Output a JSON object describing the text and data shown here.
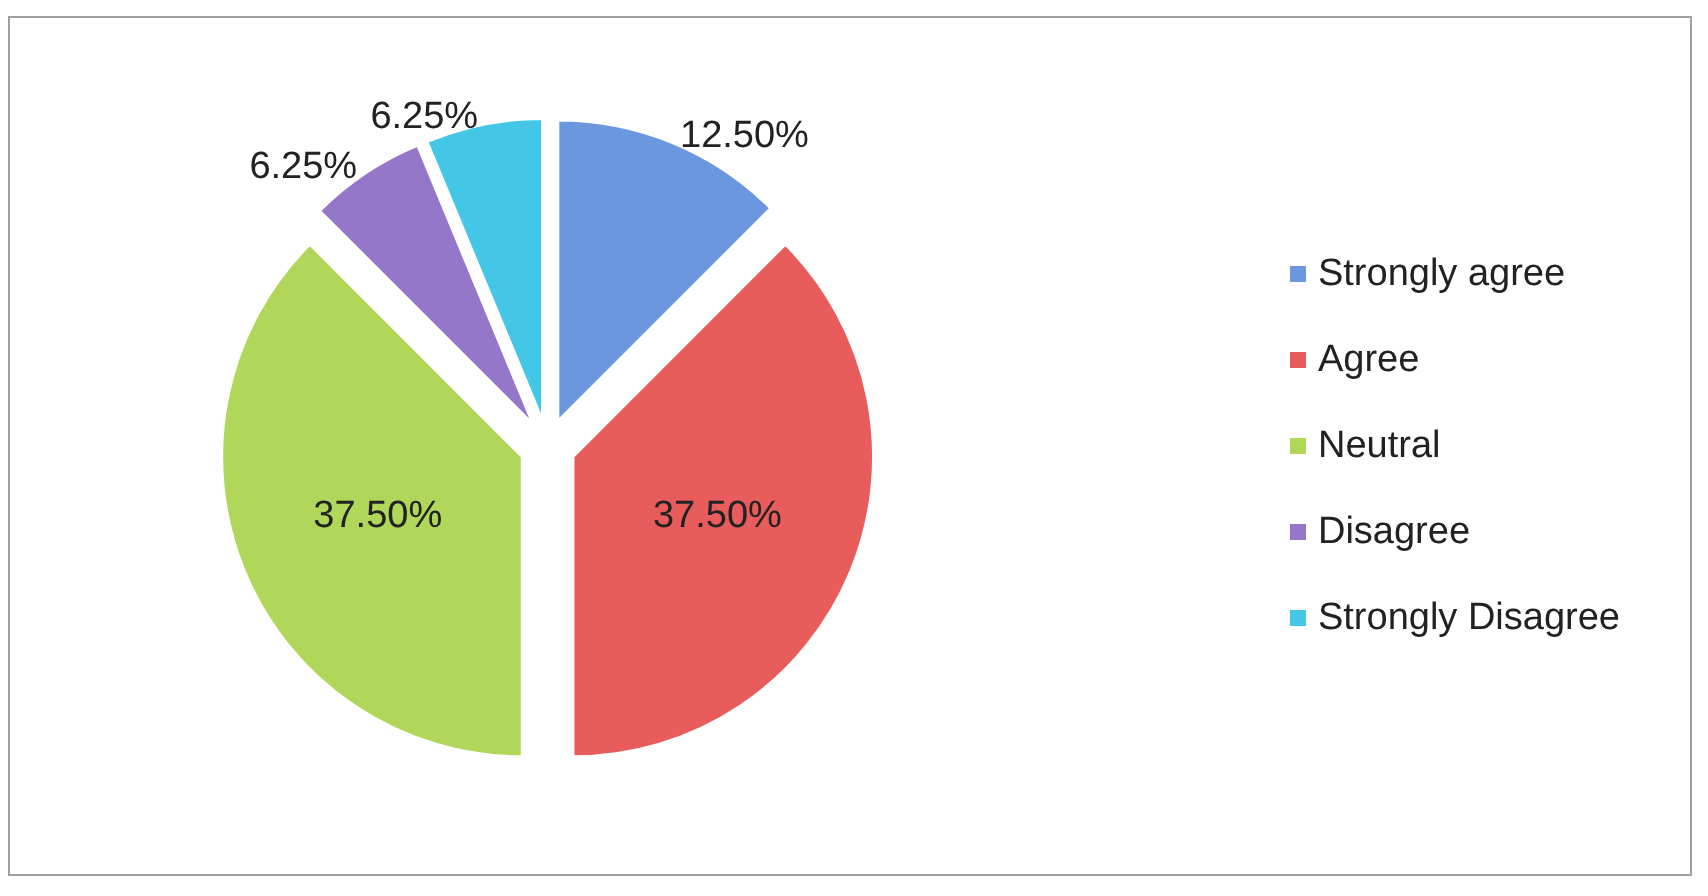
{
  "chart_data": {
    "type": "pie",
    "categories": [
      "Strongly agree",
      "Agree",
      "Neutral",
      "Disagree",
      "Strongly Disagree"
    ],
    "values": [
      12.5,
      37.5,
      37.5,
      6.25,
      6.25
    ],
    "value_labels": [
      "12.50%",
      "37.50%",
      "37.50%",
      "6.25%",
      "6.25%"
    ],
    "colors": [
      "#6b97de",
      "#e85c5c",
      "#b0d65a",
      "#9577c9",
      "#44c6e6"
    ],
    "legend": "right"
  }
}
